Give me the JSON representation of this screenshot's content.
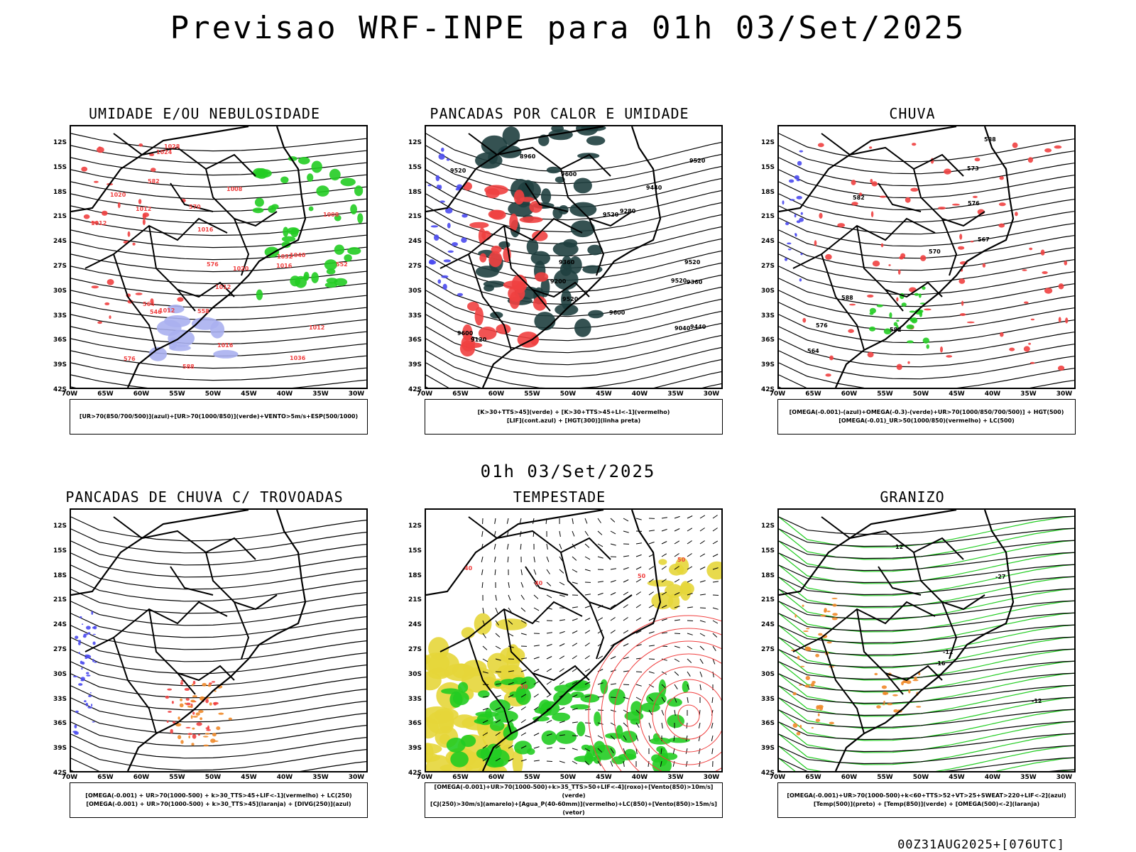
{
  "title": "Previsao WRF-INPE  para 01h 03/Set/2025",
  "mid_title": "01h 03/Set/2025",
  "footer": "00Z31AUG2025+[076UTC]",
  "lat_labels": [
    "12S",
    "15S",
    "18S",
    "21S",
    "24S",
    "27S",
    "30S",
    "33S",
    "36S",
    "39S",
    "42S"
  ],
  "lon_labels": [
    "70W",
    "65W",
    "60W",
    "55W",
    "50W",
    "45W",
    "40W",
    "35W",
    "30W"
  ],
  "colors": {
    "blue": "#4a4af0",
    "green": "#22cc22",
    "red": "#f04040",
    "orange": "#f08a2a",
    "yellow": "#e6d63a",
    "darkteal": "#1f3f3f",
    "lightblue": "#aab0f0"
  },
  "panels": [
    {
      "id": "umidade",
      "title": "UMIDADE E/OU NEBULOSIDADE",
      "legend": [
        "[UR>70(850/700/500)](azul)+[UR>70(1000/850)](verde)+VENTO>5m/s+ESP(500/1000)"
      ],
      "contour_labels": [
        "1012",
        "1020",
        "1016",
        "1024",
        "1012",
        "1008",
        "1012",
        "1020",
        "1012",
        "1016",
        "1028",
        "1032",
        "1036",
        "1040",
        "1012",
        "1016",
        "570",
        "576",
        "564",
        "558",
        "552",
        "546",
        "582",
        "588",
        "1008",
        "576"
      ]
    },
    {
      "id": "pancadas-calor",
      "title": "PANCADAS POR CALOR E UMIDADE",
      "legend": [
        "[K>30+TTS>45](verde) + [K>30+TTS>45+LI<-1](vermelho)",
        "[LIF](cont.azul) + [HGT(300)](linha preta)"
      ],
      "contour_labels": [
        "9600",
        "9600",
        "9600",
        "9520",
        "9520",
        "9520",
        "9520",
        "9520",
        "9440",
        "9360",
        "9280",
        "9200",
        "9120",
        "9040",
        "8960",
        "9440",
        "9360",
        "9520"
      ]
    },
    {
      "id": "chuva",
      "title": "CHUVA",
      "legend": [
        "[OMEGA(-0.001)-(azul)+OMEGA(-0.3)-(verde)+UR>70(1000/850/700/500)] + HGT(500)",
        "[OMEGA(-0.01)_UR>50(1000/850)(vermelho) + LC(500)"
      ],
      "contour_labels": [
        "588",
        "582",
        "576",
        "573",
        "570",
        "567",
        "564",
        "582",
        "576",
        "588"
      ]
    },
    {
      "id": "pancadas-trovoadas",
      "title": "PANCADAS DE CHUVA C/ TROVOADAS",
      "legend": [
        "[OMEGA(-0.001) + UR>70(1000-500) + k>30_TTS>45+LIF<-1](vermelho) + LC(250)",
        "[OMEGA(-0.001) + UR>70(1000-500) + k>30_TTS>45](laranja) + [DIVG(250)](azul)"
      ],
      "contour_labels": []
    },
    {
      "id": "tempestade",
      "title": "TEMPESTADE",
      "legend": [
        "[OMEGA(-0.001)+UR>70(1000-500)+k>35_TTS>50+LIF<-4](roxo)+[Vento(850)>10m/s](verde)",
        "[CJ(250)>30m/s](amarelo)+[Agua_P(40-60mm)](vermelho)+LC(850)+[Vento(850)>15m/s](vetor)"
      ],
      "contour_labels": [
        "30",
        "40",
        "50",
        "40",
        "50"
      ]
    },
    {
      "id": "granizo",
      "title": "GRANIZO",
      "legend": [
        "[OMEGA(-0.001)+UR>70(1000-500)+k<60+TTS>52+VT>25+SWEAT>220+LIF<-2](azul)",
        "[Temp(500)](preto) + [Temp(850)](verde) + [OMEGA(500)<-2](laranja)"
      ],
      "contour_labels": [
        "-12",
        "-12",
        "-16",
        "-27",
        "12"
      ]
    }
  ]
}
